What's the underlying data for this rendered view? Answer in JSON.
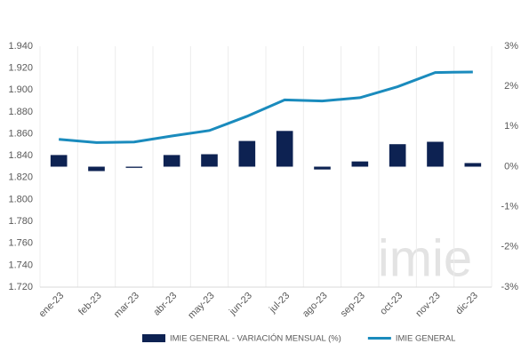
{
  "chart_data": {
    "type": "bar_line",
    "categories": [
      "ene-23",
      "feb-23",
      "mar-23",
      "abr-23",
      "may-23",
      "jun-23",
      "jul-23",
      "ago-23",
      "sep-23",
      "oct-23",
      "nov-23",
      "dic-23"
    ],
    "series": [
      {
        "name": "IMIE GENERAL - VARIACIÓN MENSUAL (%)",
        "type": "bar",
        "axis": "y2",
        "color": "#0d2252",
        "values": [
          0.29,
          -0.11,
          -0.03,
          0.29,
          0.31,
          0.64,
          0.89,
          -0.07,
          0.13,
          0.56,
          0.62,
          0.09
        ]
      },
      {
        "name": "IMIE GENERAL",
        "type": "line",
        "color": "#1a8bbd",
        "values": [
          1855,
          1852,
          1852.5,
          1858,
          1863,
          1876,
          1891,
          1890,
          1893,
          1903,
          1916,
          1916.5
        ]
      }
    ],
    "ylim": [
      1720,
      1940
    ],
    "yticks": [
      {
        "value": 1720,
        "label": "1.720"
      },
      {
        "value": 1740,
        "label": "1.740"
      },
      {
        "value": 1760,
        "label": "1.760"
      },
      {
        "value": 1780,
        "label": "1.780"
      },
      {
        "value": 1800,
        "label": "1.800"
      },
      {
        "value": 1820,
        "label": "1.820"
      },
      {
        "value": 1840,
        "label": "1.840"
      },
      {
        "value": 1860,
        "label": "1.860"
      },
      {
        "value": 1880,
        "label": "1.880"
      },
      {
        "value": 1900,
        "label": "1.900"
      },
      {
        "value": 1920,
        "label": "1.920"
      },
      {
        "value": 1940,
        "label": "1.940"
      }
    ],
    "y2lim": [
      -3,
      3
    ],
    "y2ticks": [
      {
        "value": -3,
        "label": "-3%"
      },
      {
        "value": -2,
        "label": "-2%"
      },
      {
        "value": -1,
        "label": "-1%"
      },
      {
        "value": 0,
        "label": "0%"
      },
      {
        "value": 1,
        "label": "1%"
      },
      {
        "value": 2,
        "label": "2%"
      },
      {
        "value": 3,
        "label": "3%"
      }
    ],
    "watermark": "imie"
  }
}
